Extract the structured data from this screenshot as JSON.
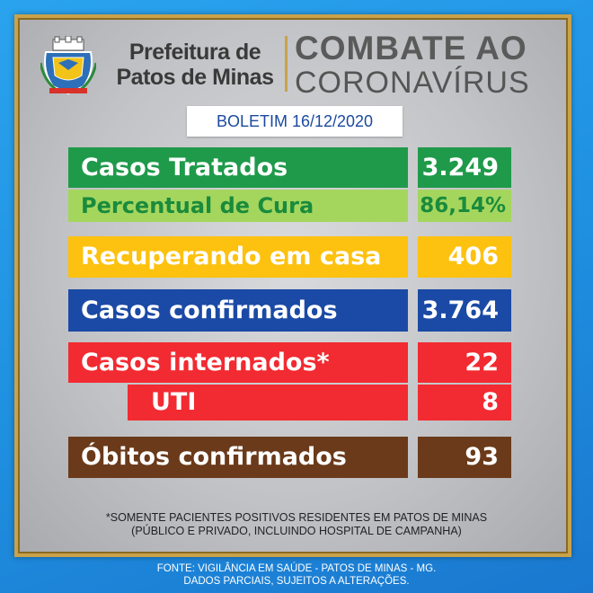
{
  "header": {
    "prefeitura_line1": "Prefeitura de",
    "prefeitura_line2": "Patos de Minas",
    "campaign_line1": "COMBATE AO",
    "campaign_line2": "CORONAVÍRUS"
  },
  "boletim": "BOLETIM 16/12/2020",
  "stats": {
    "casos_tratados": {
      "label": "Casos Tratados",
      "value": "3.249"
    },
    "percentual_cura": {
      "label": "Percentual de Cura",
      "value": "86,14%"
    },
    "recuperando": {
      "label": "Recuperando em casa",
      "value": "406"
    },
    "confirmados": {
      "label": "Casos confirmados",
      "value": "3.764"
    },
    "internados": {
      "label": "Casos internados*",
      "value": "22"
    },
    "uti": {
      "label": "UTI",
      "value": "8"
    },
    "obitos": {
      "label": "Óbitos confirmados",
      "value": "93"
    }
  },
  "note_line1": "*SOMENTE PACIENTES POSITIVOS RESIDENTES EM PATOS DE MINAS",
  "note_line2": "(PÚBLICO E PRIVADO, INCLUINDO HOSPITAL DE CAMPANHA)",
  "fonte_line1": "FONTE: VIGILÂNCIA EM SAÚDE - PATOS DE MINAS - MG.",
  "fonte_line2": "DADOS PARCIAIS, SUJEITOS A ALTERAÇÕES.",
  "colors": {
    "green": "#1f9a4a",
    "lime": "#a4d65e",
    "yellow": "#fdc10f",
    "blue": "#1b4aa6",
    "red": "#f22a31",
    "brown": "#6a3a1a",
    "gold": "#c9a24a"
  }
}
